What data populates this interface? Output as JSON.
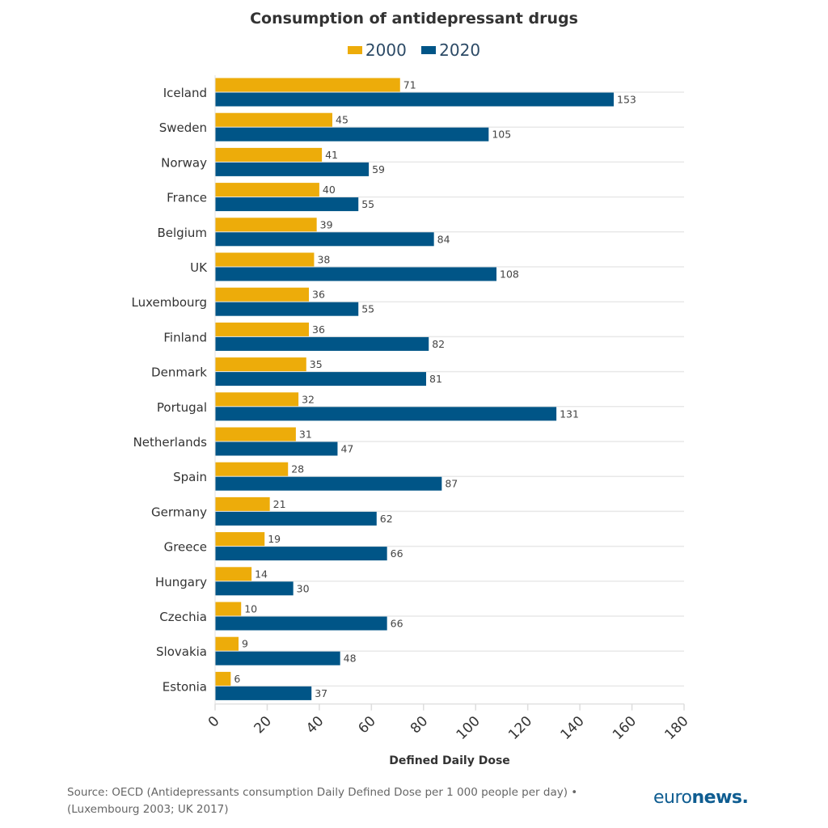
{
  "chart_data": {
    "type": "bar",
    "orientation": "horizontal",
    "title": "Consumption of antidepressant drugs",
    "xlabel": "Defined Daily Dose",
    "ylabel": "",
    "xlim": [
      0,
      180
    ],
    "xticks": [
      0,
      20,
      40,
      60,
      80,
      100,
      120,
      140,
      160,
      180
    ],
    "grid": true,
    "legend_placement": "top",
    "categories": [
      "Iceland",
      "Sweden",
      "Norway",
      "France",
      "Belgium",
      "UK",
      "Luxembourg",
      "Finland",
      "Denmark",
      "Portugal",
      "Netherlands",
      "Spain",
      "Germany",
      "Greece",
      "Hungary",
      "Czechia",
      "Slovakia",
      "Estonia"
    ],
    "series": [
      {
        "name": "2000",
        "color": "#EDAC0A",
        "values": [
          71,
          45,
          41,
          40,
          39,
          38,
          36,
          36,
          35,
          32,
          31,
          28,
          21,
          19,
          14,
          10,
          9,
          6
        ]
      },
      {
        "name": "2020",
        "color": "#005587",
        "values": [
          153,
          105,
          59,
          55,
          84,
          108,
          55,
          82,
          81,
          131,
          47,
          87,
          62,
          66,
          30,
          66,
          48,
          37
        ]
      }
    ]
  },
  "footer": {
    "source_line1": "Source: OECD (Antidepressants consumption Daily Defined Dose per 1 000 people per day) •",
    "source_line2": "(Luxembourg 2003; UK 2017)",
    "logo_text": "euronews."
  }
}
